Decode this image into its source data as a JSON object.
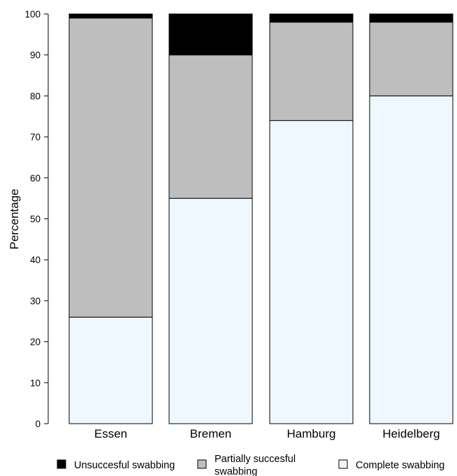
{
  "chart_data": {
    "type": "bar",
    "stacked": true,
    "title": "",
    "xlabel": "",
    "ylabel": "Percentage",
    "ylim": [
      0,
      100
    ],
    "yticks": [
      0,
      10,
      20,
      30,
      40,
      50,
      60,
      70,
      80,
      90,
      100
    ],
    "grid": false,
    "legend_position": "bottom",
    "categories": [
      "Essen",
      "Bremen",
      "Hamburg",
      "Heidelberg"
    ],
    "series": [
      {
        "name": "Complete swabbing",
        "color": "#f0f8ff",
        "values": [
          26,
          55,
          74,
          80
        ]
      },
      {
        "name": "Partially succesful swabbing",
        "color": "#bebebe",
        "values": [
          73,
          35,
          24,
          18
        ]
      },
      {
        "name": "Unsuccesful swabbing",
        "color": "#000000",
        "values": [
          1,
          10,
          2,
          2
        ]
      }
    ],
    "legend": [
      {
        "series": 2,
        "lines": [
          "Unsuccesful swabbing"
        ]
      },
      {
        "series": 1,
        "lines": [
          "Partially succesful",
          "swabbing"
        ]
      },
      {
        "series": 0,
        "lines": [
          "Complete swabbing"
        ]
      }
    ]
  }
}
